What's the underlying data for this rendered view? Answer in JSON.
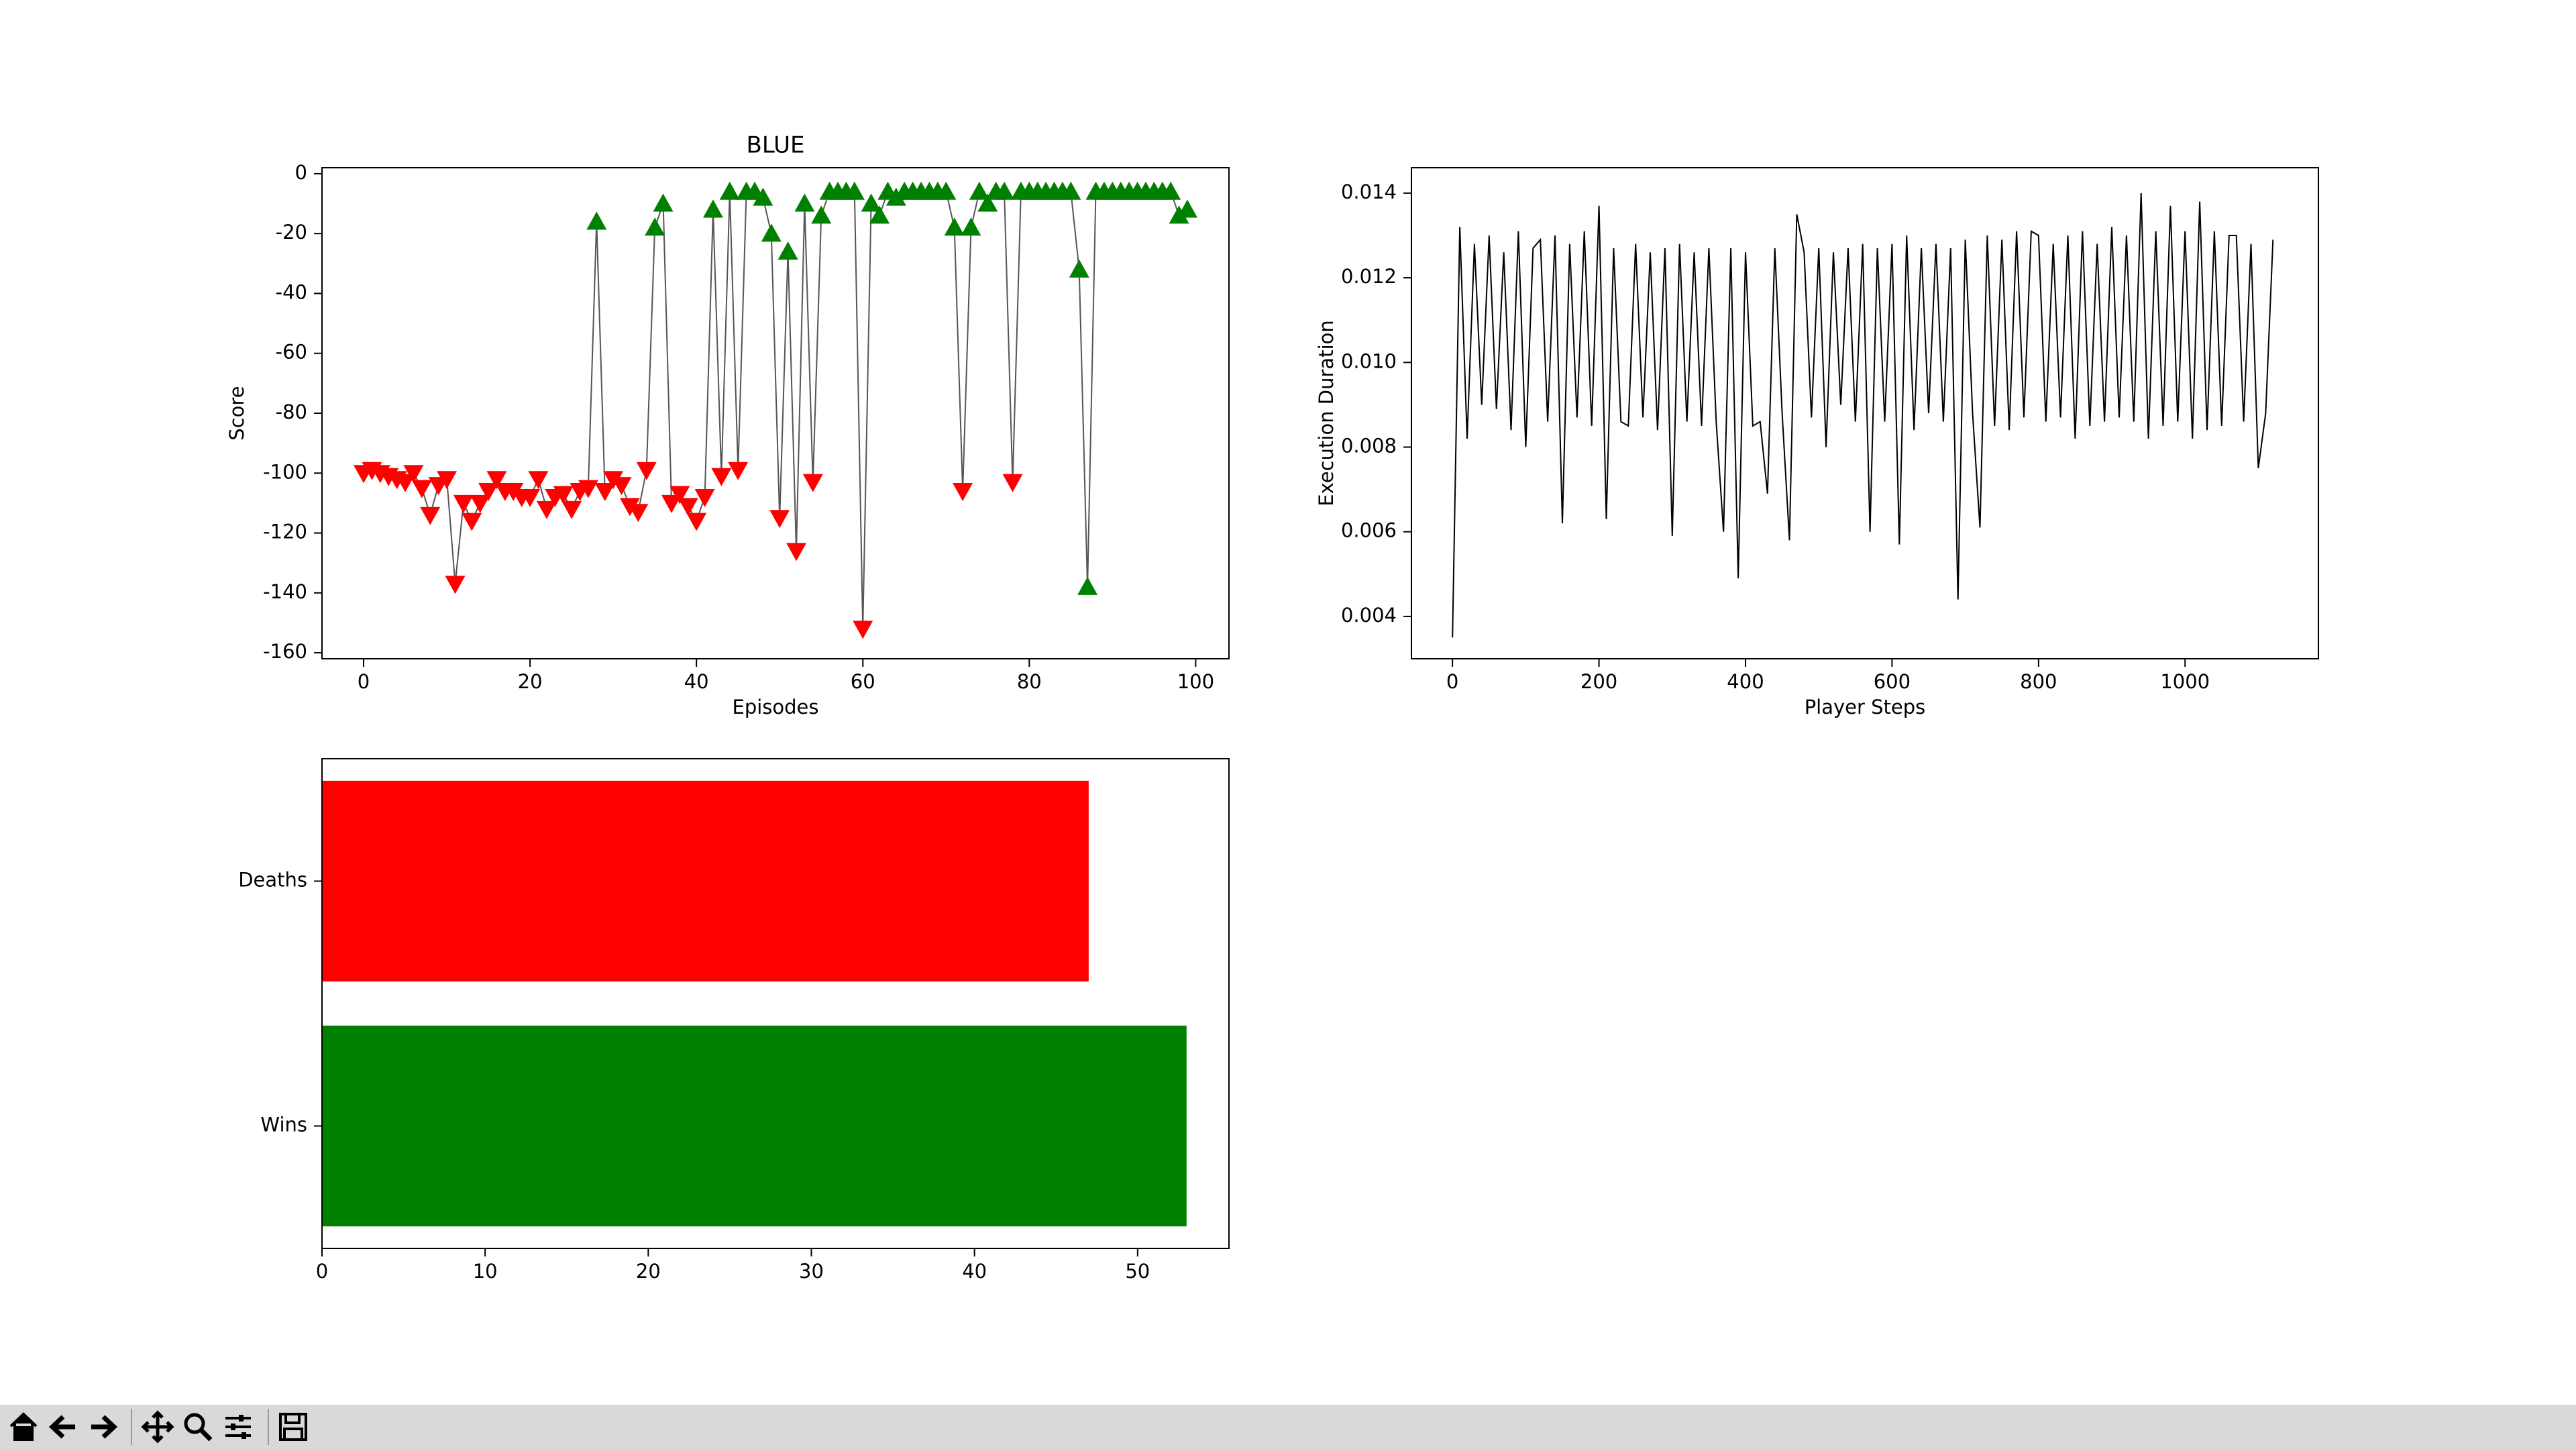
{
  "chart_data": [
    {
      "type": "line",
      "title": "BLUE",
      "x_label": "Episodes",
      "y_label": "Score",
      "x": [
        0,
        1,
        2,
        3,
        4,
        5,
        6,
        7,
        8,
        9,
        10,
        11,
        12,
        13,
        14,
        15,
        16,
        17,
        18,
        19,
        20,
        21,
        22,
        23,
        24,
        25,
        26,
        27,
        28,
        29,
        30,
        31,
        32,
        33,
        34,
        35,
        36,
        37,
        38,
        39,
        40,
        41,
        42,
        43,
        44,
        45,
        46,
        47,
        48,
        49,
        50,
        51,
        52,
        53,
        54,
        55,
        56,
        57,
        58,
        59,
        60,
        61,
        62,
        63,
        64,
        65,
        66,
        67,
        68,
        69,
        70,
        71,
        72,
        73,
        74,
        75,
        76,
        77,
        78,
        79,
        80,
        81,
        82,
        83,
        84,
        85,
        86,
        87,
        88,
        89,
        90,
        91,
        92,
        93,
        94,
        95,
        96,
        97,
        98,
        99
      ],
      "values": [
        -100,
        -99,
        -100,
        -101,
        -102,
        -103,
        -100,
        -105,
        -114,
        -104,
        -102,
        -137,
        -110,
        -116,
        -110,
        -106,
        -102,
        -106,
        -106,
        -108,
        -108,
        -102,
        -112,
        -108,
        -107,
        -112,
        -106,
        -105,
        -16,
        -106,
        -102,
        -104,
        -111,
        -113,
        -99,
        -18,
        -10,
        -110,
        -107,
        -111,
        -116,
        -108,
        -12,
        -101,
        -6,
        -99,
        -6,
        -6,
        -8,
        -20,
        -115,
        -26,
        -126,
        -10,
        -103,
        -14,
        -6,
        -6,
        -6,
        -6,
        -152,
        -10,
        -14,
        -6,
        -8,
        -6,
        -6,
        -6,
        -6,
        -6,
        -6,
        -18,
        -106,
        -18,
        -6,
        -10,
        -6,
        -6,
        -103,
        -6,
        -6,
        -6,
        -6,
        -6,
        -6,
        -6,
        -32,
        -138,
        -6,
        -6,
        -6,
        -6,
        -6,
        -6,
        -6,
        -6,
        -6,
        -6,
        -14,
        -12
      ],
      "markers": [
        "down",
        "down",
        "down",
        "down",
        "down",
        "down",
        "down",
        "down",
        "down",
        "down",
        "down",
        "down",
        "down",
        "down",
        "down",
        "down",
        "down",
        "down",
        "down",
        "down",
        "down",
        "down",
        "down",
        "down",
        "down",
        "down",
        "down",
        "down",
        "up",
        "down",
        "down",
        "down",
        "down",
        "down",
        "down",
        "up",
        "up",
        "down",
        "down",
        "down",
        "down",
        "down",
        "up",
        "down",
        "up",
        "down",
        "up",
        "up",
        "up",
        "up",
        "down",
        "up",
        "down",
        "up",
        "down",
        "up",
        "up",
        "up",
        "up",
        "up",
        "down",
        "up",
        "up",
        "up",
        "up",
        "up",
        "up",
        "up",
        "up",
        "up",
        "up",
        "up",
        "down",
        "up",
        "up",
        "up",
        "up",
        "up",
        "down",
        "up",
        "up",
        "up",
        "up",
        "up",
        "up",
        "up",
        "up",
        "up",
        "up",
        "up",
        "up",
        "up",
        "up",
        "up",
        "up",
        "up",
        "up",
        "up",
        "up",
        "up"
      ],
      "marker_colors": {
        "down": "#ff0000",
        "up": "#008000"
      },
      "color": "#555555",
      "xlim": [
        -5,
        104
      ],
      "xticks": [
        0,
        20,
        40,
        60,
        80,
        100
      ],
      "ylim": [
        -162,
        2
      ],
      "yticks": [
        0,
        -20,
        -40,
        -60,
        -80,
        -100,
        -120,
        -140,
        -160
      ]
    },
    {
      "type": "line",
      "x_label": "Player Steps",
      "y_label": "Execution Duration",
      "color": "#000000",
      "x": [
        0,
        10,
        20,
        30,
        40,
        50,
        60,
        70,
        80,
        90,
        100,
        110,
        120,
        130,
        140,
        150,
        160,
        170,
        180,
        190,
        200,
        210,
        220,
        230,
        240,
        250,
        260,
        270,
        280,
        290,
        300,
        310,
        320,
        330,
        340,
        350,
        360,
        370,
        380,
        390,
        400,
        410,
        420,
        430,
        440,
        450,
        460,
        470,
        480,
        490,
        500,
        510,
        520,
        530,
        540,
        550,
        560,
        570,
        580,
        590,
        600,
        610,
        620,
        630,
        640,
        650,
        660,
        670,
        680,
        690,
        700,
        710,
        720,
        730,
        740,
        750,
        760,
        770,
        780,
        790,
        800,
        810,
        820,
        830,
        840,
        850,
        860,
        870,
        880,
        890,
        900,
        910,
        920,
        930,
        940,
        950,
        960,
        970,
        980,
        990,
        1000,
        1010,
        1020,
        1030,
        1040,
        1050,
        1060,
        1070,
        1080,
        1090,
        1100,
        1110,
        1120
      ],
      "values": [
        0.0035,
        0.0132,
        0.0082,
        0.0128,
        0.009,
        0.013,
        0.0089,
        0.0126,
        0.0084,
        0.0131,
        0.008,
        0.0127,
        0.0129,
        0.0086,
        0.013,
        0.0062,
        0.0128,
        0.0087,
        0.0131,
        0.0085,
        0.0137,
        0.0063,
        0.0127,
        0.0086,
        0.0085,
        0.0128,
        0.0087,
        0.0126,
        0.0084,
        0.0127,
        0.0059,
        0.0128,
        0.0086,
        0.0126,
        0.0085,
        0.0127,
        0.0086,
        0.006,
        0.0127,
        0.0049,
        0.0126,
        0.0085,
        0.0086,
        0.0069,
        0.0127,
        0.0088,
        0.0058,
        0.0135,
        0.0126,
        0.0087,
        0.0127,
        0.008,
        0.0126,
        0.009,
        0.0127,
        0.0086,
        0.0128,
        0.006,
        0.0127,
        0.0086,
        0.0128,
        0.0057,
        0.013,
        0.0084,
        0.0127,
        0.0088,
        0.0128,
        0.0086,
        0.0127,
        0.0044,
        0.0129,
        0.0088,
        0.0061,
        0.013,
        0.0085,
        0.0129,
        0.0084,
        0.0131,
        0.0087,
        0.0131,
        0.013,
        0.0086,
        0.0128,
        0.0087,
        0.013,
        0.0082,
        0.0131,
        0.0085,
        0.0128,
        0.0086,
        0.0132,
        0.0087,
        0.013,
        0.0086,
        0.014,
        0.0082,
        0.0131,
        0.0085,
        0.0137,
        0.0086,
        0.0131,
        0.0082,
        0.0138,
        0.0084,
        0.0131,
        0.0085,
        0.013,
        0.013,
        0.0086,
        0.0128,
        0.0075,
        0.0088,
        0.0129
      ],
      "xlim": [
        -56,
        1182
      ],
      "xticks": [
        0,
        200,
        400,
        600,
        800,
        1000
      ],
      "ylim": [
        0.003,
        0.0146
      ],
      "yticks": [
        0.004,
        0.006,
        0.008,
        {
          "value": 0.01,
          "label": "0.010"
        },
        0.012,
        0.014
      ]
    },
    {
      "type": "hbar",
      "categories": [
        "Deaths",
        "Wins"
      ],
      "values": [
        47,
        53
      ],
      "colors": [
        "#ff0000",
        "#008000"
      ],
      "xlim": [
        0,
        55.6
      ],
      "xticks": [
        0,
        10,
        20,
        30,
        40,
        50
      ]
    }
  ]
}
